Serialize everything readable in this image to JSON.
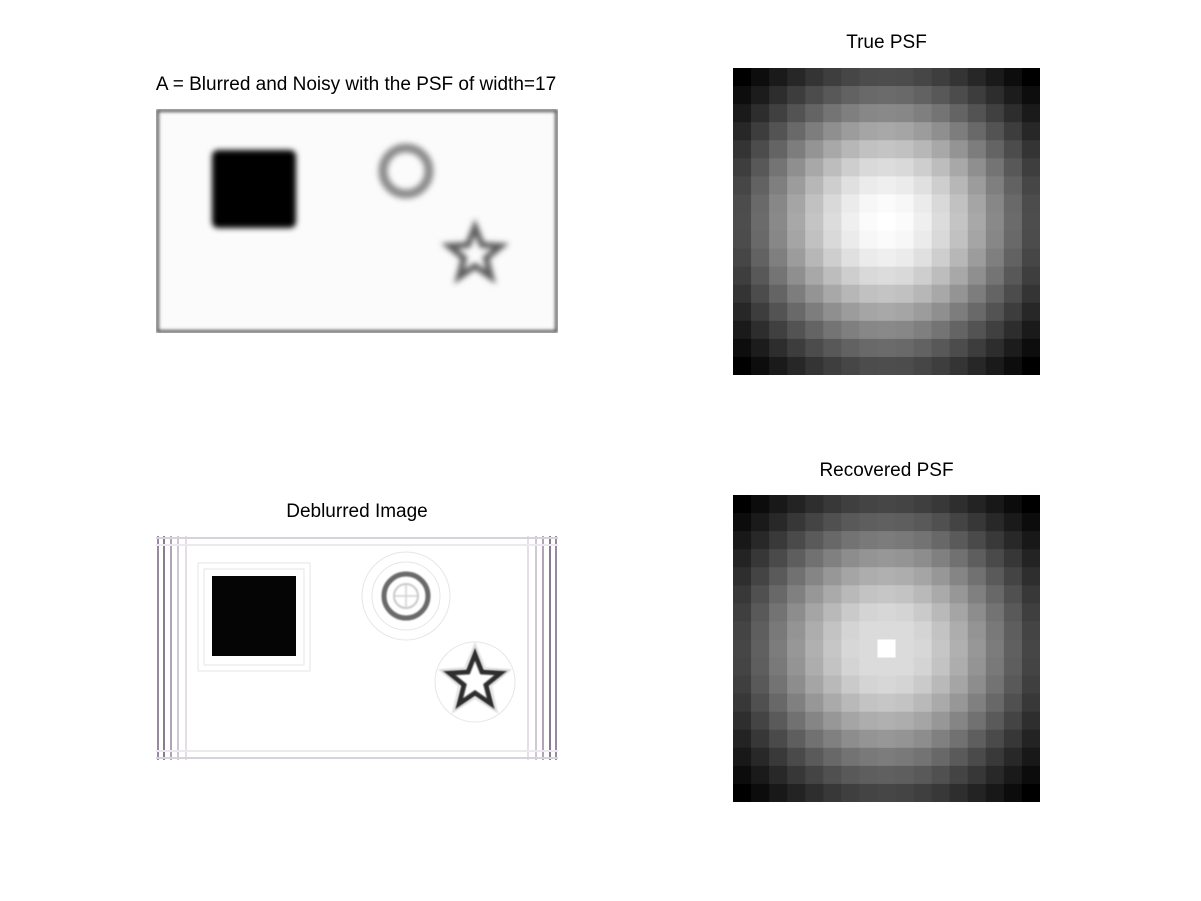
{
  "figure": {
    "background": "#ffffff",
    "panels": {
      "blurred": {
        "title": "A = Blurred and Noisy with the PSF of width=17",
        "shapes": [
          "square",
          "ring",
          "star"
        ]
      },
      "true_psf": {
        "title": "True PSF",
        "grid_size": 17,
        "colormap": "gray"
      },
      "deblurred": {
        "title": "Deblurred Image",
        "shapes": [
          "square",
          "ring",
          "star"
        ]
      },
      "recovered_psf": {
        "title": "Recovered PSF",
        "grid_size": 17,
        "colormap": "gray",
        "peak": "single bright center pixel"
      }
    }
  }
}
